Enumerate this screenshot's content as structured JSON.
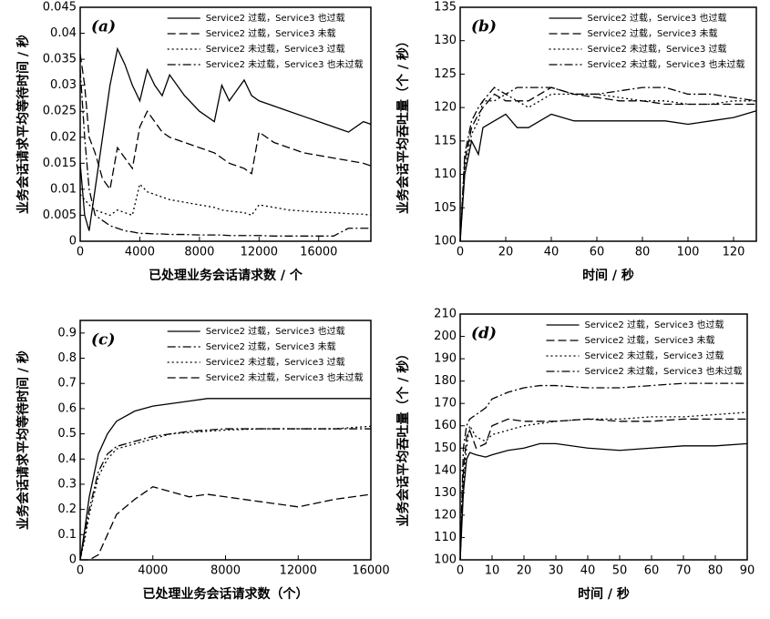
{
  "chart_data": [
    {
      "type": "line",
      "label": "(a)",
      "xlabel": "已处理业务会话请求数 / 个",
      "ylabel": "业务会话请求平均等待时间 / 秒",
      "legend": "upper right",
      "xlim": [
        0,
        19500
      ],
      "xticks": [
        0,
        4000,
        8000,
        12000,
        16000
      ],
      "ylim": [
        0,
        0.045
      ],
      "yticks": [
        0,
        0.005,
        0.01,
        0.015,
        0.02,
        0.025,
        0.03,
        0.035,
        0.04,
        0.045
      ],
      "x": [
        0,
        300,
        600,
        1000,
        1500,
        2000,
        2500,
        3000,
        3500,
        4000,
        4500,
        5000,
        5500,
        6000,
        7000,
        8000,
        9000,
        9500,
        10000,
        11000,
        11500,
        12000,
        13000,
        14000,
        15000,
        16000,
        17000,
        18000,
        19000,
        19500
      ],
      "series": [
        {
          "name": "Service2 过载，Service3 也过载",
          "color": "#000000",
          "dash": "solid",
          "values": [
            0.015,
            0.005,
            0.002,
            0.01,
            0.02,
            0.03,
            0.037,
            0.034,
            0.03,
            0.027,
            0.033,
            0.03,
            0.028,
            0.032,
            0.028,
            0.025,
            0.023,
            0.03,
            0.027,
            0.031,
            0.028,
            0.027,
            0.026,
            0.025,
            0.024,
            0.023,
            0.022,
            0.021,
            0.023,
            0.0225
          ]
        },
        {
          "name": "Service2 过载，Service3 未载",
          "color": "#000000",
          "dash": "dashed",
          "values": [
            0.036,
            0.03,
            0.02,
            0.017,
            0.012,
            0.01,
            0.018,
            0.016,
            0.014,
            0.022,
            0.025,
            0.023,
            0.021,
            0.02,
            0.019,
            0.018,
            0.017,
            0.016,
            0.015,
            0.014,
            0.013,
            0.021,
            0.019,
            0.018,
            0.017,
            0.0165,
            0.016,
            0.0155,
            0.015,
            0.0145
          ]
        },
        {
          "name": "Service2 未过载，Service3 过载",
          "color": "#000000",
          "dash": "dotted",
          "values": [
            0.009,
            0.008,
            0.007,
            0.006,
            0.0055,
            0.005,
            0.006,
            0.0055,
            0.005,
            0.011,
            0.0095,
            0.009,
            0.0085,
            0.008,
            0.0075,
            0.007,
            0.0065,
            0.006,
            0.0058,
            0.0055,
            0.005,
            0.007,
            0.0065,
            0.006,
            0.0058,
            0.0056,
            0.0055,
            0.0053,
            0.0052,
            0.005
          ]
        },
        {
          "name": "Service2 未过载，Service3 也未过载",
          "color": "#000000",
          "dash": "dashdot",
          "values": [
            0.033,
            0.02,
            0.01,
            0.005,
            0.004,
            0.003,
            0.0025,
            0.002,
            0.0018,
            0.0015,
            0.0015,
            0.0014,
            0.0014,
            0.0013,
            0.0013,
            0.0012,
            0.0012,
            0.0012,
            0.0011,
            0.0011,
            0.0011,
            0.0011,
            0.001,
            0.001,
            0.001,
            0.001,
            0.001,
            0.0025,
            0.0025,
            0.0025
          ]
        }
      ]
    },
    {
      "type": "line",
      "label": "(b)",
      "xlabel": "时间 / 秒",
      "ylabel": "业务会话平均吞吐量（个 / 秒）",
      "legend": "upper right",
      "xlim": [
        0,
        130
      ],
      "xticks": [
        0,
        20,
        40,
        60,
        80,
        100,
        120
      ],
      "ylim": [
        100,
        135
      ],
      "yticks": [
        100,
        105,
        110,
        115,
        120,
        125,
        130,
        135
      ],
      "x": [
        0,
        2,
        5,
        8,
        10,
        15,
        20,
        25,
        30,
        35,
        40,
        50,
        60,
        70,
        80,
        90,
        100,
        110,
        120,
        130
      ],
      "series": [
        {
          "name": "Service2 过载，Service3 也过载",
          "color": "#000000",
          "dash": "solid",
          "values": [
            100,
            110,
            115,
            113,
            117,
            118,
            119,
            117,
            117,
            118,
            119,
            118,
            118,
            118,
            118,
            118,
            117.5,
            118,
            118.5,
            119.5
          ]
        },
        {
          "name": "Service2 过载，Service3 未载",
          "color": "#000000",
          "dash": "dashed",
          "values": [
            100,
            112,
            117,
            119,
            120,
            122,
            121,
            121,
            121,
            122,
            123,
            122,
            121.5,
            121,
            121,
            120.5,
            120.5,
            120.5,
            120.5,
            120.5
          ]
        },
        {
          "name": "Service2 未过载，Service3 过载",
          "color": "#000000",
          "dash": "dotted",
          "values": [
            100,
            111,
            116,
            118,
            121,
            121,
            122,
            121,
            120,
            121,
            122,
            122,
            122,
            121.5,
            121,
            121,
            120.5,
            120.5,
            121,
            121
          ]
        },
        {
          "name": "Service2 未过载，Service3 也未过载",
          "color": "#000000",
          "dash": "dashdot",
          "values": [
            100,
            113,
            118,
            120,
            121,
            123,
            122,
            123,
            123,
            123,
            123,
            122,
            122,
            122.5,
            123,
            123,
            122,
            122,
            121.5,
            121
          ]
        }
      ]
    },
    {
      "type": "line",
      "label": "(c)",
      "xlabel": "已处理业务会话请求数（个）",
      "ylabel": "业务会话请求平均等待时间 / 秒",
      "legend": "upper right",
      "xlim": [
        0,
        16000
      ],
      "xticks": [
        0,
        4000,
        8000,
        12000,
        16000
      ],
      "ylim": [
        0,
        0.95
      ],
      "yticks": [
        0,
        0.1,
        0.2,
        0.3,
        0.4,
        0.5,
        0.6,
        0.7,
        0.8,
        0.9
      ],
      "x": [
        0,
        250,
        500,
        1000,
        1500,
        2000,
        3000,
        4000,
        5000,
        6000,
        7000,
        8000,
        10000,
        12000,
        14000,
        16000
      ],
      "series": [
        {
          "name": "Service2 过载，Service3 也过载",
          "color": "#000000",
          "dash": "solid",
          "values": [
            0,
            0.12,
            0.25,
            0.42,
            0.5,
            0.55,
            0.59,
            0.61,
            0.62,
            0.63,
            0.64,
            0.64,
            0.64,
            0.64,
            0.64,
            0.64
          ]
        },
        {
          "name": "Service2 过载，Service3 未载",
          "color": "#000000",
          "dash": "dashdot",
          "values": [
            0,
            0.1,
            0.2,
            0.35,
            0.42,
            0.45,
            0.47,
            0.49,
            0.5,
            0.51,
            0.515,
            0.52,
            0.52,
            0.52,
            0.52,
            0.52
          ]
        },
        {
          "name": "Service2 未过载，Service3 过载",
          "color": "#000000",
          "dash": "dotted",
          "values": [
            0,
            0.08,
            0.18,
            0.33,
            0.4,
            0.44,
            0.46,
            0.48,
            0.5,
            0.505,
            0.51,
            0.515,
            0.52,
            0.52,
            0.52,
            0.53
          ]
        },
        {
          "name": "Service2 未过载，Service3 也未过载",
          "color": "#000000",
          "dash": "dashed",
          "values": [
            0,
            0,
            0,
            0.02,
            0.1,
            0.18,
            0.24,
            0.29,
            0.27,
            0.25,
            0.26,
            0.25,
            0.23,
            0.21,
            0.24,
            0.26
          ]
        }
      ]
    },
    {
      "type": "line",
      "label": "(d)",
      "xlabel": "时间 / 秒",
      "ylabel": "业务会话平均吞吐量（个 / 秒）",
      "legend": "upper right",
      "xlim": [
        0,
        90
      ],
      "xticks": [
        0,
        10,
        20,
        30,
        40,
        50,
        60,
        70,
        80,
        90
      ],
      "ylim": [
        100,
        210
      ],
      "yticks": [
        100,
        110,
        120,
        130,
        140,
        150,
        160,
        170,
        180,
        190,
        200,
        210
      ],
      "x": [
        0,
        1,
        2,
        3,
        5,
        8,
        10,
        15,
        20,
        25,
        30,
        40,
        50,
        60,
        70,
        80,
        90
      ],
      "series": [
        {
          "name": "Service2 过载，Service3 也过载",
          "color": "#000000",
          "dash": "solid",
          "values": [
            100,
            130,
            145,
            148,
            147,
            146,
            147,
            149,
            150,
            152,
            152,
            150,
            149,
            150,
            151,
            151,
            152
          ]
        },
        {
          "name": "Service2 过载，Service3 未载",
          "color": "#000000",
          "dash": "dashed",
          "values": [
            100,
            140,
            155,
            158,
            150,
            152,
            160,
            163,
            162,
            162,
            162,
            163,
            162,
            162,
            163,
            163,
            163
          ]
        },
        {
          "name": "Service2 未过载，Service3 过载",
          "color": "#000000",
          "dash": "dotted",
          "values": [
            100,
            135,
            150,
            160,
            155,
            153,
            156,
            158,
            160,
            161,
            162,
            163,
            163,
            164,
            164,
            165,
            166
          ]
        },
        {
          "name": "Service2 未过载，Service3 也未过载",
          "color": "#000000",
          "dash": "dashdot",
          "values": [
            100,
            150,
            160,
            163,
            165,
            168,
            172,
            175,
            177,
            178,
            178,
            177,
            177,
            178,
            179,
            179,
            179
          ]
        }
      ]
    }
  ]
}
